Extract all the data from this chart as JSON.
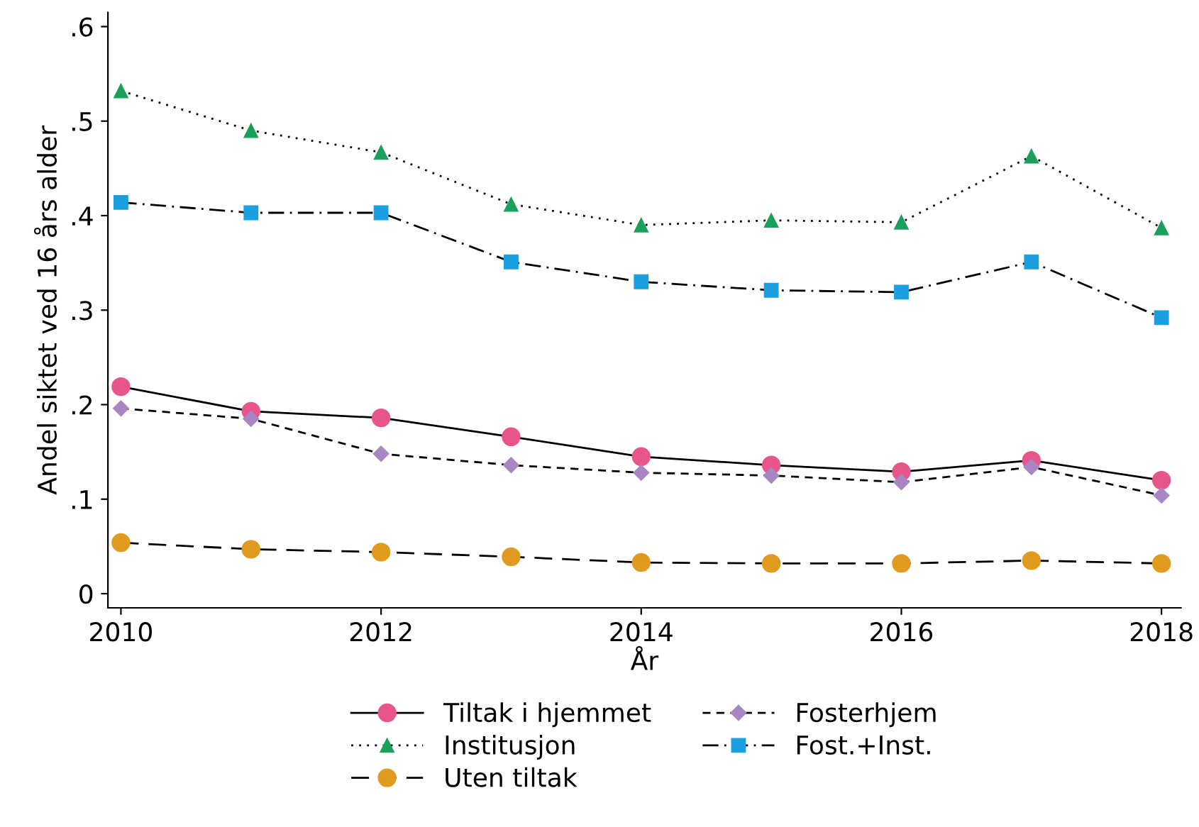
{
  "chart_data": {
    "type": "line",
    "xlabel": "År",
    "ylabel": "Andel siktet ved 16 års alder",
    "x": [
      2010,
      2011,
      2012,
      2013,
      2014,
      2015,
      2016,
      2017,
      2018
    ],
    "xlim": [
      2009.9,
      2018.15
    ],
    "xticks": [
      2010,
      2012,
      2014,
      2016,
      2018
    ],
    "ylim": [
      -0.015,
      0.615
    ],
    "yticks": [
      {
        "value": 0,
        "label": "0"
      },
      {
        "value": 0.1,
        "label": ".1"
      },
      {
        "value": 0.2,
        "label": ".2"
      },
      {
        "value": 0.3,
        "label": ".3"
      },
      {
        "value": 0.4,
        "label": ".4"
      },
      {
        "value": 0.5,
        "label": ".5"
      },
      {
        "value": 0.6,
        "label": ".6"
      }
    ],
    "grid": false,
    "legend": "bottom",
    "series": [
      {
        "name": "Tiltak i hjemmet",
        "color": "#e8558a",
        "marker": "circle",
        "line_style": "solid",
        "values": [
          0.219,
          0.193,
          0.186,
          0.166,
          0.145,
          0.136,
          0.129,
          0.141,
          0.12
        ]
      },
      {
        "name": "Fosterhjem",
        "color": "#a886c4",
        "marker": "diamond",
        "line_style": "dashed",
        "values": [
          0.196,
          0.185,
          0.148,
          0.136,
          0.128,
          0.125,
          0.118,
          0.134,
          0.104
        ]
      },
      {
        "name": "Institusjon",
        "color": "#1aa05a",
        "marker": "triangle",
        "line_style": "dotted",
        "values": [
          0.532,
          0.49,
          0.467,
          0.412,
          0.39,
          0.395,
          0.393,
          0.463,
          0.387
        ]
      },
      {
        "name": "Fost.+Inst.",
        "color": "#1a9fe0",
        "marker": "square",
        "line_style": "dashdot",
        "values": [
          0.414,
          0.403,
          0.403,
          0.351,
          0.33,
          0.321,
          0.319,
          0.351,
          0.292
        ]
      },
      {
        "name": "Uten tiltak",
        "color": "#e09a1e",
        "marker": "circle",
        "line_style": "longdash",
        "values": [
          0.054,
          0.047,
          0.044,
          0.039,
          0.033,
          0.032,
          0.032,
          0.035,
          0.032
        ]
      }
    ]
  }
}
